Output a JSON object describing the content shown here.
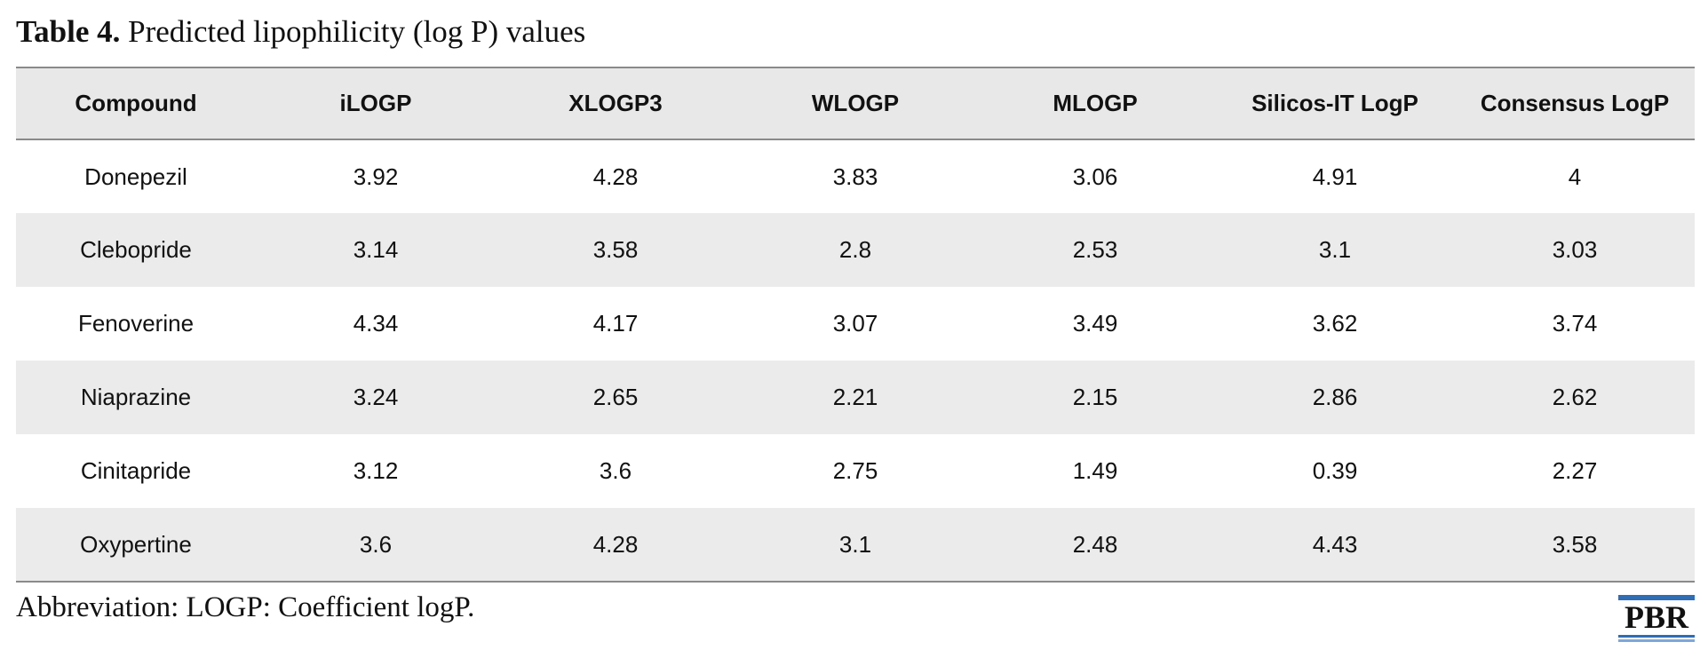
{
  "caption": {
    "label": "Table 4.",
    "title": "Predicted lipophilicity (log P) values"
  },
  "table": {
    "headers": [
      "Compound",
      "iLOGP",
      "XLOGP3",
      "WLOGP",
      "MLOGP",
      "Silicos-IT LogP",
      "Consensus LogP"
    ],
    "rows": [
      [
        "Donepezil",
        "3.92",
        "4.28",
        "3.83",
        "3.06",
        "4.91",
        "4"
      ],
      [
        "Clebopride",
        "3.14",
        "3.58",
        "2.8",
        "2.53",
        "3.1",
        "3.03"
      ],
      [
        "Fenoverine",
        "4.34",
        "4.17",
        "3.07",
        "3.49",
        "3.62",
        "3.74"
      ],
      [
        "Niaprazine",
        "3.24",
        "2.65",
        "2.21",
        "2.15",
        "2.86",
        "2.62"
      ],
      [
        "Cinitapride",
        "3.12",
        "3.6",
        "2.75",
        "1.49",
        "0.39",
        "2.27"
      ],
      [
        "Oxypertine",
        "3.6",
        "4.28",
        "3.1",
        "2.48",
        "4.43",
        "3.58"
      ]
    ]
  },
  "footnote": "Abbreviation: LOGP: Coefficient logP.",
  "logo": {
    "text": "PBR",
    "accent_color": "#2f6db5",
    "accent_light": "#7fa7d8"
  },
  "colors": {
    "header_bg": "#e8e8e8",
    "stripe_bg": "#ebebeb",
    "rule": "#8a8a8a"
  }
}
